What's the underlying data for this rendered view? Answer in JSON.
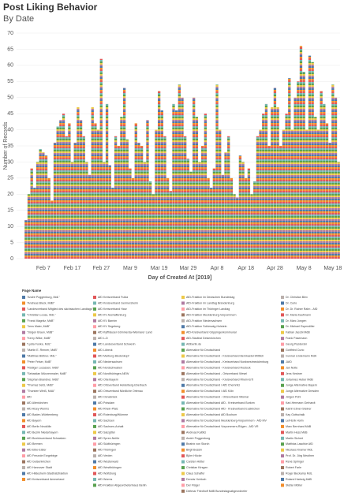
{
  "chart_data": {
    "type": "bar",
    "title": "Post Liking Behavior",
    "subtitle": "By Date",
    "y_label": "Number of Records",
    "x_label": "Day of Created At [2019]",
    "categories": [
      null,
      null,
      null,
      null,
      null,
      null,
      "Feb 7",
      null,
      null,
      null,
      null,
      null,
      null,
      null,
      null,
      null,
      "Feb 17",
      null,
      null,
      null,
      null,
      null,
      null,
      null,
      null,
      null,
      "Feb 27",
      null,
      null,
      null,
      null,
      null,
      null,
      null,
      null,
      null,
      "Mar 9",
      null,
      null,
      null,
      null,
      null,
      null,
      null,
      null,
      null,
      "Mar 19",
      null,
      null,
      null,
      null,
      null,
      null,
      null,
      null,
      null,
      "Mar 29",
      null,
      null,
      null,
      null,
      null,
      null,
      null,
      null,
      null,
      "Apr 8",
      null,
      null,
      null,
      null,
      null,
      null,
      null,
      null,
      null,
      "Apr 18",
      null,
      null,
      null,
      null,
      null,
      null,
      null,
      null,
      null,
      "Apr 28",
      null,
      null,
      null,
      null,
      null,
      null,
      null,
      null,
      null,
      "May 8",
      null,
      null,
      null,
      null,
      null,
      null,
      null,
      null,
      null,
      "May 18",
      null,
      null
    ],
    "values": [
      12,
      20,
      28,
      22,
      30,
      34,
      33,
      32,
      25,
      18,
      36,
      41,
      43,
      45,
      38,
      42,
      30,
      36,
      47,
      43,
      38,
      30,
      26,
      47,
      42,
      40,
      62,
      30,
      48,
      29,
      22,
      38,
      35,
      44,
      53,
      37,
      28,
      25,
      42,
      36,
      35,
      30,
      43,
      24,
      20,
      40,
      52,
      46,
      38,
      25,
      21,
      48,
      46,
      54,
      50,
      38,
      31,
      27,
      50,
      44,
      30,
      35,
      45,
      25,
      22,
      28,
      54,
      40,
      26,
      33,
      38,
      25,
      20,
      19,
      32,
      30,
      25,
      28,
      20,
      24,
      38,
      40,
      45,
      48,
      35,
      47,
      53,
      47,
      35,
      40,
      45,
      56,
      40,
      50,
      55,
      66,
      58,
      40,
      63,
      61,
      44,
      40,
      52,
      48,
      42,
      36,
      54,
      50,
      30
    ],
    "ylim": [
      0,
      70
    ],
    "yticks": [
      0,
      5,
      10,
      15,
      20,
      25,
      30,
      35,
      40,
      45,
      50,
      55,
      60,
      65,
      70
    ],
    "grid": true,
    "legend_title": "Page Name",
    "legend_palette": [
      "#4e79a7",
      "#f28e2b",
      "#e15759",
      "#76b7b2",
      "#59a14f",
      "#edc948",
      "#b07aa1",
      "#ff9da7",
      "#9c755f",
      "#bab0ac"
    ],
    "legend_columns": [
      [
        "\"André Poggenburg, MdL\"",
        "\"Andreas Bleck, MdB\"",
        "\"Landesverband Mitglied des sächsischen Landtags\"",
        "\"Christian Loose, MdL\"",
        "\"Frank Magnitz, MdB\"",
        "\"Jens Maier, MdB\"",
        "\"Jürgen Braun, MdB\"",
        "\"Kerry Wilke, MdB\"",
        "\"Lydia Funke, MdL\"",
        "\"Martin E. Renner, MdB\"",
        "\"Matthias Büttner, MdL\"",
        "\"Peter Felser, MdB\"",
        "\"Rüdiger Lucassen, MdB\"",
        "\"Sebastian Münzenmaier, MdB\"",
        "\"Stephan Brandner, MdB\"",
        "\"Thomas Seitz, MdB\"",
        "\"Thorsten Weiß, MdA\"",
        "AfD",
        "AfD Altenkirchen",
        "AfD Alzey-Worms",
        "AfD Baden-Württemberg",
        "AfD Bayern",
        "AfD Berlin Neukölln",
        "AfD Bezirk Niederbayern",
        "AfD Bezirksverband Schwaben",
        "AfD Bremen",
        "AfD Elbe-Elster",
        "AfD Freunde Erzgebirge",
        "AfD Gelsenkirchen",
        "AfD Hannover Stadt",
        "AfD Hildesheim Stadtratsfraktion",
        "AfD Kreisverband Ammerland"
      ],
      [
        "AfD Kreisverband Fulda",
        "AfD Kreisverband Germersheim",
        "AfD Kreisverband Harz",
        "AfD KV Aschaffenburg",
        "AfD KV Barnim",
        "AfD KV Segeberg",
        "AfD Kyffhäuser-Sömmerda-Weimarer Land",
        "AfD L-D",
        "AfD Landesverband Schwerin",
        "AfD Lübeck",
        "AfD Marburg-Biedenkopf",
        "AfD Niedersachsen",
        "AfD Nordschwaben",
        "AfD Nordthüringen-NEW",
        "AfD Oberbayern",
        "AfD Ortsverband Heidelberg-Eberbach",
        "AfD Ortsverband Nördliche Ortenau",
        "AfD Osnabrück",
        "AfD Potsdam",
        "AfD Rhein-Pfalz",
        "AfD Rotenburg/Wümme",
        "AfD Sachsen",
        "AfD Sachsen-Anhalt",
        "AfD Salzgitter",
        "AfD Spree-Neiße",
        "AfD Südthüringen",
        "AfD Thüringen",
        "AfD Verden",
        "AfD Westerwald",
        "AfD Westthüringen",
        "AfD Wolfsburg",
        "AfD Worms",
        "AfD-Fraktion Abgeordnetenhaus Berlin"
      ],
      [
        "AfD-Fraktion im Deutschen Bundestag",
        "AfD-Fraktion im Landtag Brandenburg",
        "AfD-Fraktion im Thüringer Landtag",
        "AfD-Fraktion Mecklenburg-Vorpommern",
        "AfD-Fraktion Niedersachsen",
        "AfD-Fraktion Schleswig-Holstein",
        "AfD-Kreisverband Göppingenkommunal",
        "AfD-Stadtrat Gelsenkirchen",
        "Afdberlin.de",
        "Alternative für Deutschland",
        "Alternative für Deutschland - Kreisverband Bernkastel-Wittlich",
        "Alternative für Deutschland - Kreisverband Nordwestmecklenburg",
        "Alternative für Deutschland - Kreisverband Rostock",
        "Alternative für Deutschland - Ortsverband Wesel",
        "Alternative für Deutschland - Kreisverband Rhein-Erft",
        "Alternative für Deutschland / AfD Chemnitz",
        "Alternative für Deutschland / AfD Köln",
        "Alternative für Deutschland - Ortsverband Wismar",
        "Alternative für Deutschland AfD - Kreisverband Borken",
        "Alternative für Deutschland AfD - Kreisverband Euskirchen",
        "Alternative für Deutschland AfD Bochum",
        "Alternative für Deutschland Mecklenburg-Vorpommern - AfD MV",
        "Alternative für Deutschland Vorpommern-Rügen - AfD VR",
        "Andreas Kalbitz",
        "André Poggenburg",
        "Beatrix von Storch",
        "Birgit Bessin",
        "Björn Höcke",
        "Carsten Hütter",
        "Christian Kirsgen",
        "Claus Schaffer",
        "Dennis Hohloch",
        "Der Flügel",
        "Dietmar Friedhoff MdB Bundestagsabgeordneter"
      ],
      [
        "Dr. Christian Blex",
        "Dr. Curio",
        "Dr. Dr. Rainer Rahn - AfD",
        "Dr. Maria Kaufmann",
        "Dr. Marc Jongen",
        "Dr. Michael Espendiller",
        "Fabian Jacobi MdB",
        "Frank Pasemann",
        "Georg Pazderski",
        "Gottfried Curio",
        "Gunnar Lindemann MdA",
        "JAfD",
        "Jan Nolte",
        "Jens Kestner",
        "Johannes Huber MdB",
        "Junge Alternative Bayern",
        "Junge Alternative Dresden",
        "Jürgen Pohl",
        "Karl-Hermann Gerhardt",
        "Katrin Ebner-Steiner",
        "Kay Gottschalk",
        "Leif-Erik Holm",
        "Marc Bernhard MdB",
        "Martin Hess MdB",
        "Martin Sichert",
        "Matthias Laschke AfD",
        "Nicolaus Kramer MdL",
        "Prof. Dr. Jörg Meuthen",
        "René Springer",
        "Robert Farle",
        "Roger Beckamp MdL",
        "Roland Hartwig MdB",
        "Stefan Möller"
      ]
    ]
  }
}
